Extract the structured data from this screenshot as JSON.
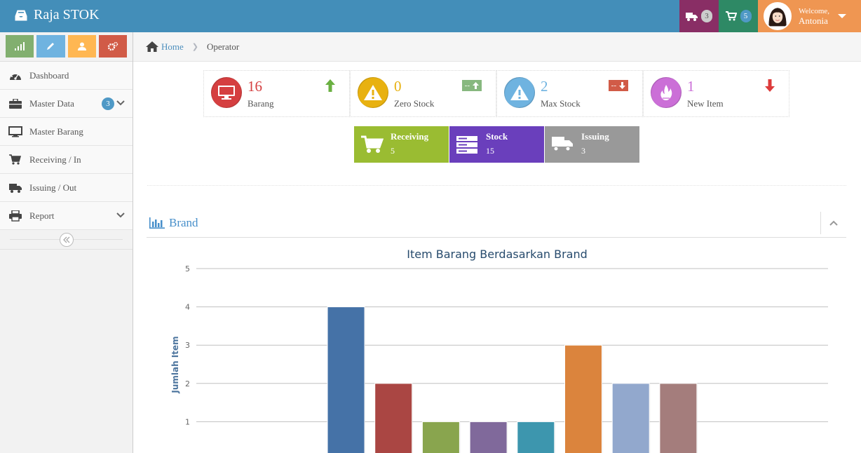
{
  "navbar": {
    "brand": "Raja STOK",
    "truck_count": "3",
    "cart_count": "5",
    "welcome": "Welcome,",
    "user_name": "Antonia",
    "colors": {
      "bar": "#438eb9",
      "truck": "#892e65",
      "cart": "#2e8965",
      "user": "#ef9652"
    }
  },
  "sidebar": {
    "shortcut_icons": [
      "signal-icon",
      "pencil-icon",
      "users-icon",
      "cogs-icon"
    ],
    "items": [
      {
        "label": "Dashboard",
        "icon": "dashboard-icon"
      },
      {
        "label": "Master Data",
        "icon": "briefcase-icon",
        "badge": "3"
      },
      {
        "label": "Master Barang",
        "icon": "desktop-icon"
      },
      {
        "label": "Receiving / In",
        "icon": "cart-icon"
      },
      {
        "label": "Issuing / Out",
        "icon": "truck-icon"
      },
      {
        "label": "Report",
        "icon": "print-icon"
      }
    ]
  },
  "breadcrumb": {
    "home": "Home",
    "current": "Operator"
  },
  "infoboxes": [
    {
      "number": "16",
      "label": "Barang",
      "color": "#d53f40",
      "icon": "monitor-icon",
      "stat": "up-arrow-icon"
    },
    {
      "number": "0",
      "label": "Zero Stock",
      "color": "#e8b110",
      "icon": "warning-icon",
      "stat_text": "--"
    },
    {
      "number": "2",
      "label": "Max Stock",
      "color": "#6fb3e0",
      "icon": "warning-icon",
      "stat_text": "--"
    },
    {
      "number": "1",
      "label": "New Item",
      "color": "#cb6fd7",
      "icon": "flame-icon",
      "stat": "down-arrow-icon"
    }
  ],
  "tiles": [
    {
      "title": "Receiving",
      "value": "5",
      "color": "#9abc32",
      "icon": "cart-icon"
    },
    {
      "title": "Stock",
      "value": "15",
      "color": "#6a3fbc",
      "icon": "server-icon"
    },
    {
      "title": "Issuing",
      "value": "3",
      "color": "#999999",
      "icon": "truck-icon"
    }
  ],
  "widget": {
    "title": "Brand"
  },
  "chart_data": {
    "type": "bar",
    "title": "Item Barang Berdasarkan Brand",
    "ylabel": "Jumlah Item",
    "ylim": [
      0,
      5
    ],
    "yticks": [
      "1",
      "2",
      "3",
      "4",
      "5"
    ],
    "values": [
      4,
      2,
      1,
      1,
      1,
      3,
      2,
      2
    ],
    "colors": [
      "#4572a7",
      "#aa4643",
      "#89a54e",
      "#80699b",
      "#3d96ae",
      "#db843d",
      "#92a8cd",
      "#a47d7c"
    ],
    "grid": true
  }
}
